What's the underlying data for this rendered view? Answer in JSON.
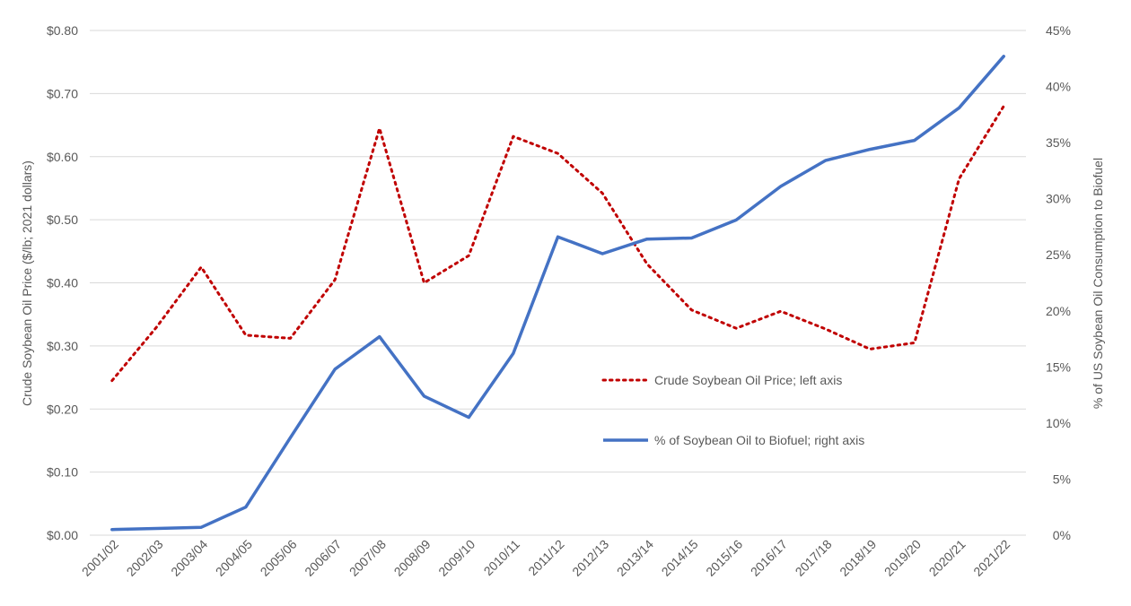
{
  "chart_data": {
    "type": "line",
    "title": "",
    "categories": [
      "2001/02",
      "2002/03",
      "2003/04",
      "2004/05",
      "2005/06",
      "2006/07",
      "2007/08",
      "2008/09",
      "2009/10",
      "2010/11",
      "2011/12",
      "2012/13",
      "2013/14",
      "2014/15",
      "2015/16",
      "2016/17",
      "2017/18",
      "2018/19",
      "2019/20",
      "2020/21",
      "2021/22"
    ],
    "y_left": {
      "label": "Crude Soybean Oil Price ($/lb; 2021 dollars)",
      "min": 0,
      "max": 0.8,
      "step": 0.1,
      "tick_labels": [
        "$0.00",
        "$0.10",
        "$0.20",
        "$0.30",
        "$0.40",
        "$0.50",
        "$0.60",
        "$0.70",
        "$0.80"
      ]
    },
    "y_right": {
      "label": "% of US Soybean Oil Consumption to Biofuel",
      "min": 0,
      "max": 45,
      "step": 5,
      "tick_labels": [
        "0%",
        "5%",
        "10%",
        "15%",
        "20%",
        "25%",
        "30%",
        "35%",
        "40%",
        "45%"
      ]
    },
    "grid": true,
    "legend_position": "center-right",
    "series": [
      {
        "name": "Crude Soybean Oil Price; left axis",
        "axis": "left",
        "style": "dotted",
        "color": "#c00000",
        "values": [
          0.245,
          0.33,
          0.425,
          0.317,
          0.312,
          0.405,
          0.645,
          0.4,
          0.443,
          0.632,
          0.605,
          0.542,
          0.43,
          0.357,
          0.328,
          0.355,
          0.327,
          0.295,
          0.305,
          0.565,
          0.68
        ]
      },
      {
        "name": "% of Soybean Oil to Biofuel; right axis",
        "axis": "right",
        "style": "solid",
        "color": "#4472c4",
        "values": [
          0.5,
          0.6,
          0.7,
          2.5,
          8.7,
          14.8,
          17.7,
          12.4,
          10.5,
          16.2,
          26.6,
          25.1,
          26.4,
          26.5,
          28.1,
          31.1,
          33.4,
          34.4,
          35.2,
          38.1,
          42.7
        ]
      }
    ]
  }
}
